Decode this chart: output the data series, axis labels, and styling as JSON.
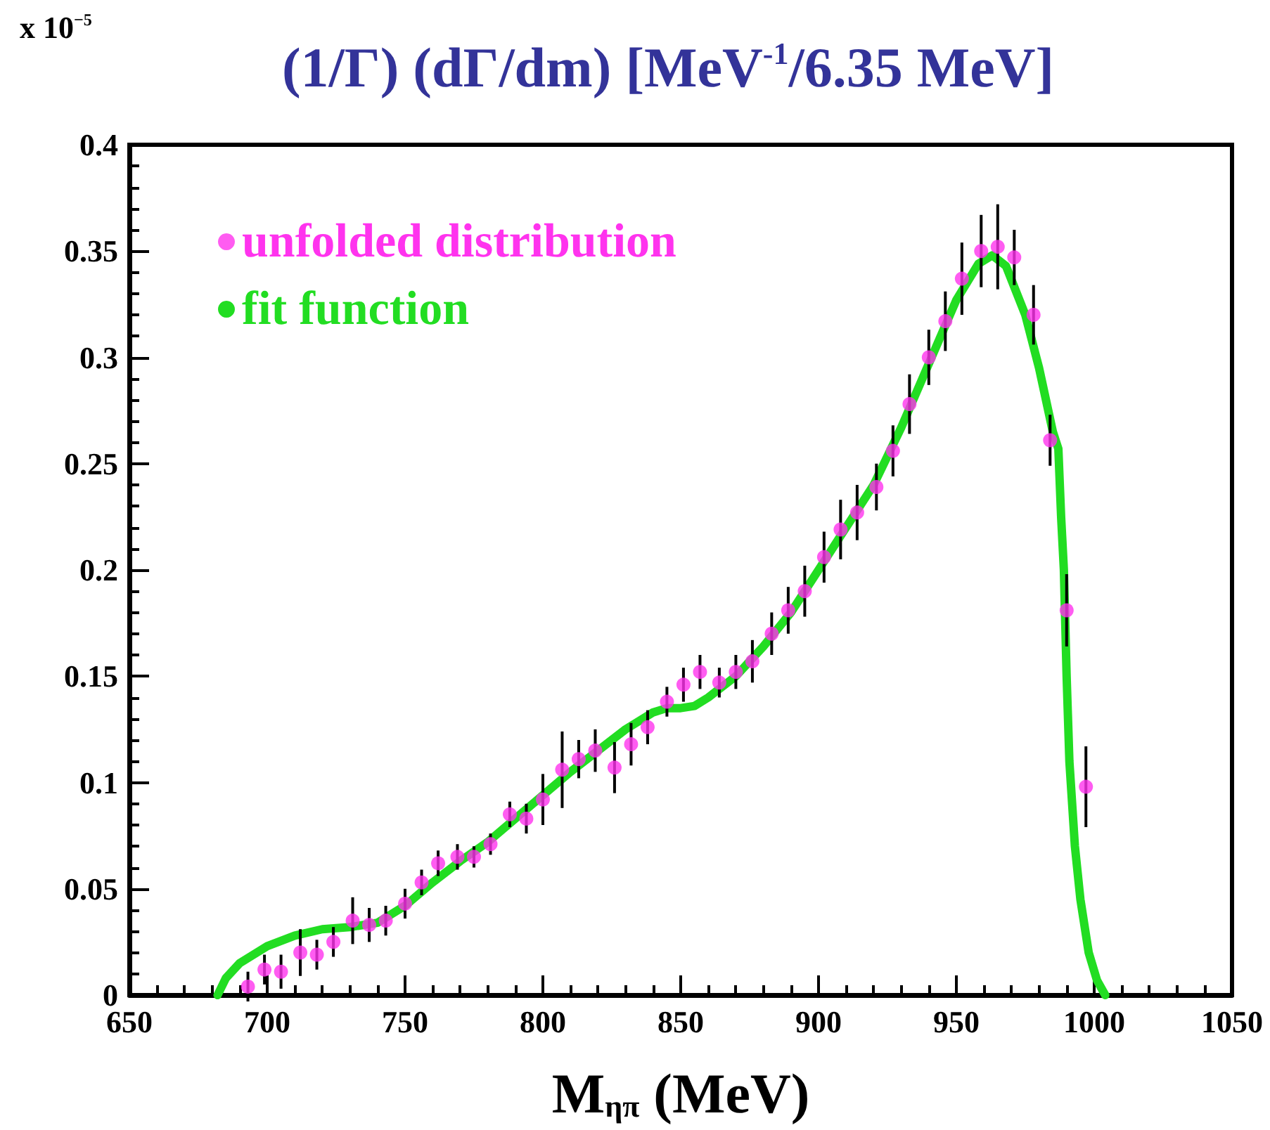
{
  "chart_data": {
    "type": "scatter",
    "title": "(1/Γ) (dΓ/dm) [MeV$^{-1}$/6.35 MeV]",
    "xlabel": "M$_{ηπ}$ (MeV)",
    "annotations": [
      "x 10$^{−5}$"
    ],
    "xlim": [
      650,
      1050
    ],
    "xticks": [
      650,
      700,
      750,
      800,
      850,
      900,
      950,
      1000,
      1050
    ],
    "ylim": [
      0,
      0.4
    ],
    "yticks": [
      0,
      0.05,
      0.1,
      0.15,
      0.2,
      0.25,
      0.3,
      0.35,
      0.4
    ],
    "legend": "top left",
    "grid": false,
    "series": [
      {
        "name": "fit function",
        "type": "line",
        "color": "#22dd22",
        "x": [
          682,
          685,
          690,
          700,
          710,
          720,
          730,
          740,
          750,
          760,
          770,
          780,
          790,
          800,
          810,
          820,
          830,
          840,
          845,
          850,
          855,
          860,
          870,
          880,
          890,
          900,
          910,
          920,
          930,
          940,
          950,
          958,
          963,
          968,
          975,
          980,
          985,
          987,
          988,
          989,
          990,
          991,
          993,
          995,
          998,
          1001,
          1004
        ],
        "values": [
          0,
          0.008,
          0.015,
          0.023,
          0.028,
          0.031,
          0.032,
          0.034,
          0.042,
          0.053,
          0.063,
          0.072,
          0.083,
          0.094,
          0.105,
          0.115,
          0.125,
          0.133,
          0.135,
          0.135,
          0.136,
          0.14,
          0.15,
          0.164,
          0.18,
          0.2,
          0.22,
          0.24,
          0.267,
          0.297,
          0.327,
          0.344,
          0.348,
          0.343,
          0.32,
          0.295,
          0.265,
          0.257,
          0.225,
          0.2,
          0.15,
          0.11,
          0.07,
          0.045,
          0.02,
          0.007,
          0
        ]
      },
      {
        "name": "unfolded distribution",
        "color": "#ff33ee",
        "x": [
          693,
          699,
          705,
          712,
          718,
          724,
          731,
          737,
          743,
          750,
          756,
          762,
          769,
          775,
          781,
          788,
          794,
          800,
          807,
          813,
          819,
          826,
          832,
          838,
          845,
          851,
          857,
          864,
          870,
          876,
          883,
          889,
          895,
          902,
          908,
          914,
          921,
          927,
          933,
          940,
          946,
          952,
          959,
          965,
          971,
          978,
          984,
          990,
          997
        ],
        "values": [
          0.004,
          0.012,
          0.011,
          0.02,
          0.019,
          0.025,
          0.035,
          0.033,
          0.035,
          0.043,
          0.053,
          0.062,
          0.065,
          0.065,
          0.071,
          0.085,
          0.083,
          0.092,
          0.106,
          0.111,
          0.115,
          0.107,
          0.118,
          0.126,
          0.138,
          0.146,
          0.152,
          0.147,
          0.152,
          0.157,
          0.17,
          0.181,
          0.19,
          0.206,
          0.219,
          0.227,
          0.239,
          0.256,
          0.278,
          0.3,
          0.317,
          0.337,
          0.35,
          0.352,
          0.347,
          0.32,
          0.261,
          0.181,
          0.098
        ],
        "errors": [
          0.007,
          0.007,
          0.008,
          0.011,
          0.007,
          0.007,
          0.011,
          0.008,
          0.007,
          0.007,
          0.006,
          0.006,
          0.006,
          0.005,
          0.005,
          0.006,
          0.007,
          0.012,
          0.018,
          0.009,
          0.01,
          0.012,
          0.01,
          0.008,
          0.007,
          0.008,
          0.008,
          0.007,
          0.008,
          0.01,
          0.01,
          0.011,
          0.012,
          0.012,
          0.014,
          0.013,
          0.011,
          0.012,
          0.014,
          0.013,
          0.014,
          0.017,
          0.017,
          0.02,
          0.013,
          0.014,
          0.012,
          0.017,
          0.019
        ]
      }
    ]
  }
}
